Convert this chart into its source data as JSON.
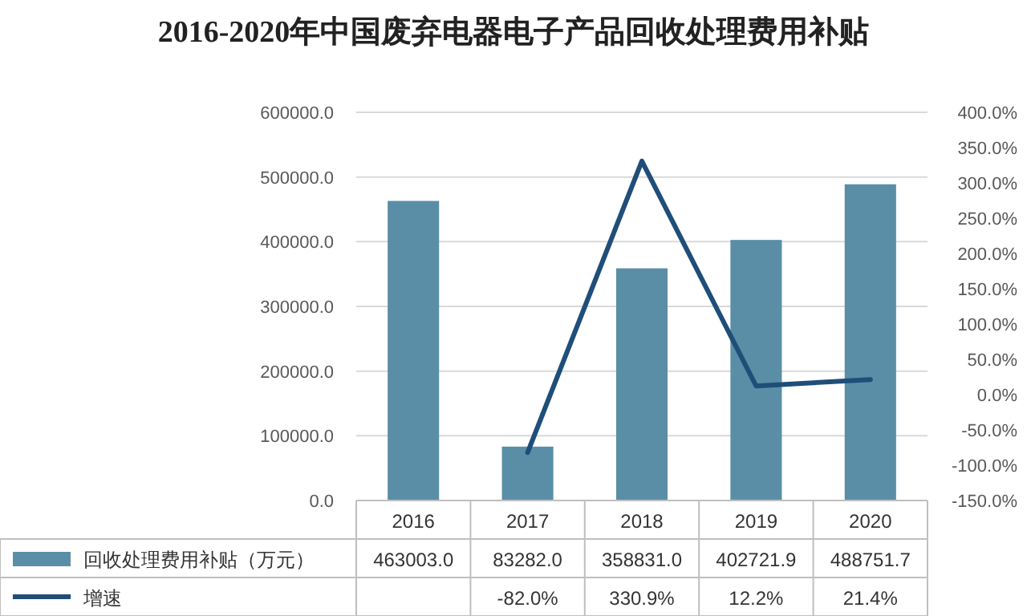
{
  "chart_data": {
    "type": "bar",
    "title": "2016-2020年中国废弃电器电子产品回收处理费用补贴",
    "categories": [
      "2016",
      "2017",
      "2018",
      "2019",
      "2020"
    ],
    "series": [
      {
        "name": "回收处理费用补贴（万元）",
        "color": "#5a8ea6",
        "values": [
          463003.0,
          83282.0,
          358831.0,
          402721.9,
          488751.7
        ],
        "value_labels": [
          "463003.0",
          "83282.0",
          "358831.0",
          "402721.9",
          "488751.7"
        ]
      },
      {
        "name": "增速",
        "type": "line",
        "axis": "y2",
        "color": "#1f4e79",
        "values": [
          null,
          -82.0,
          330.9,
          12.2,
          21.4
        ],
        "value_labels": [
          null,
          "-82.0%",
          "330.9%",
          "12.2%",
          "21.4%"
        ]
      }
    ],
    "ylim": [
      0,
      600000
    ],
    "yticks": [
      {
        "value": 0,
        "label": "0.0"
      },
      {
        "value": 100000,
        "label": "100000.0"
      },
      {
        "value": 200000,
        "label": "200000.0"
      },
      {
        "value": 300000,
        "label": "300000.0"
      },
      {
        "value": 400000,
        "label": "400000.0"
      },
      {
        "value": 500000,
        "label": "500000.0"
      },
      {
        "value": 600000,
        "label": "600000.0"
      }
    ],
    "y2lim": [
      -150,
      400
    ],
    "y2ticks": [
      {
        "value": -150,
        "label": "-150.0%"
      },
      {
        "value": -100,
        "label": "-100.0%"
      },
      {
        "value": -50,
        "label": "-50.0%"
      },
      {
        "value": 0,
        "label": "0.0%"
      },
      {
        "value": 50,
        "label": "50.0%"
      },
      {
        "value": 100,
        "label": "100.0%"
      },
      {
        "value": 150,
        "label": "150.0%"
      },
      {
        "value": 200,
        "label": "200.0%"
      },
      {
        "value": 250,
        "label": "250.0%"
      },
      {
        "value": 300,
        "label": "300.0%"
      },
      {
        "value": 350,
        "label": "350.0%"
      },
      {
        "value": 400,
        "label": "400.0%"
      }
    ],
    "grid": "y",
    "legend": "bottom"
  }
}
